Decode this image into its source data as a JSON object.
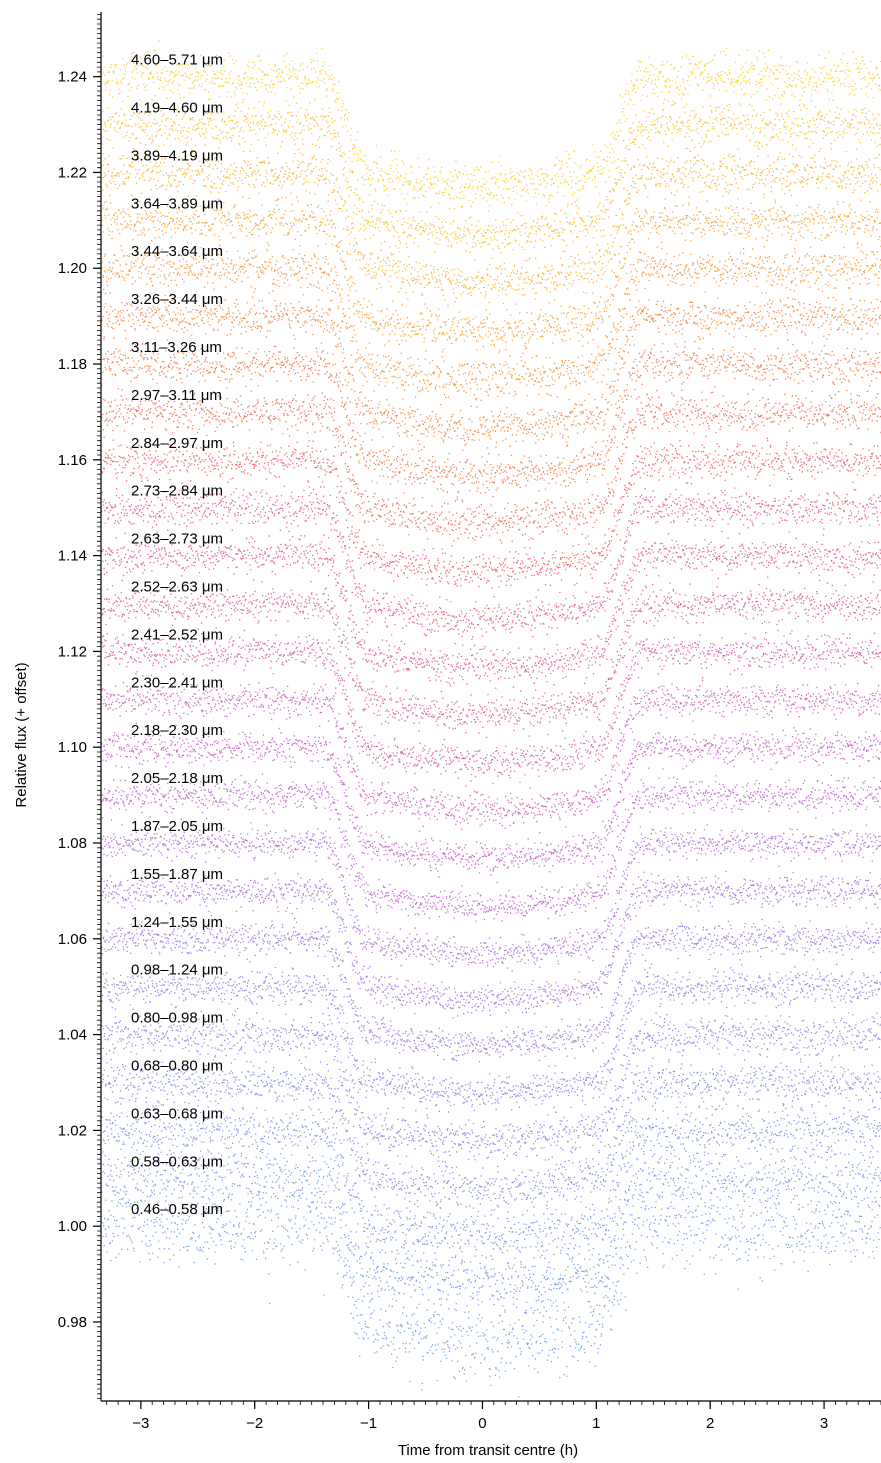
{
  "chart_data": {
    "type": "scatter",
    "title": "",
    "xlabel": "Time from transit centre (h)",
    "ylabel": "Relative flux (+ offset)",
    "xlim": [
      -3.35,
      3.5
    ],
    "ylim": [
      0.9635,
      1.2535
    ],
    "xticks": [
      -3,
      -2,
      -1,
      0,
      1,
      2,
      3
    ],
    "xtick_labels": [
      "−3",
      "−2",
      "−1",
      "0",
      "1",
      "2",
      "3"
    ],
    "yticks": [
      0.98,
      1.0,
      1.02,
      1.04,
      1.06,
      1.08,
      1.1,
      1.12,
      1.14,
      1.16,
      1.18,
      1.2,
      1.22,
      1.24
    ],
    "ytick_labels": [
      "0.98",
      "1.00",
      "1.02",
      "1.04",
      "1.06",
      "1.08",
      "1.10",
      "1.12",
      "1.14",
      "1.16",
      "1.18",
      "1.20",
      "1.22",
      "1.24"
    ],
    "grid": false,
    "legend": "none",
    "transit": {
      "t14_hours": [
        -1.4,
        1.4
      ],
      "t23_hours": [
        -1.0,
        1.0
      ]
    },
    "series": [
      {
        "name": "0.46–0.58 μm",
        "baseline": 1.0,
        "depth": 0.0235,
        "color": "#6f9ce8",
        "scatter": 0.004
      },
      {
        "name": "0.58–0.63 μm",
        "baseline": 1.01,
        "depth": 0.022,
        "color": "#7596e6",
        "scatter": 0.003
      },
      {
        "name": "0.63–0.68 μm",
        "baseline": 1.02,
        "depth": 0.022,
        "color": "#7b90e5",
        "scatter": 0.0025
      },
      {
        "name": "0.68–0.80 μm",
        "baseline": 1.03,
        "depth": 0.022,
        "color": "#828ae4",
        "scatter": 0.0022
      },
      {
        "name": "0.80–0.98 μm",
        "baseline": 1.04,
        "depth": 0.022,
        "color": "#8a84e2",
        "scatter": 0.002
      },
      {
        "name": "0.98–1.24 μm",
        "baseline": 1.05,
        "depth": 0.022,
        "color": "#927ee0",
        "scatter": 0.0018
      },
      {
        "name": "1.24–1.55 μm",
        "baseline": 1.06,
        "depth": 0.022,
        "color": "#9d77de",
        "scatter": 0.0015
      },
      {
        "name": "1.55–1.87 μm",
        "baseline": 1.07,
        "depth": 0.0225,
        "color": "#a870dc",
        "scatter": 0.0015
      },
      {
        "name": "1.87–2.05 μm",
        "baseline": 1.08,
        "depth": 0.023,
        "color": "#b26bd8",
        "scatter": 0.0015
      },
      {
        "name": "2.05–2.18 μm",
        "baseline": 1.09,
        "depth": 0.023,
        "color": "#bb66cf",
        "scatter": 0.0016
      },
      {
        "name": "2.18–2.30 μm",
        "baseline": 1.1,
        "depth": 0.023,
        "color": "#c462c4",
        "scatter": 0.0016
      },
      {
        "name": "2.30–2.41 μm",
        "baseline": 1.11,
        "depth": 0.023,
        "color": "#cc5fb6",
        "scatter": 0.0017
      },
      {
        "name": "2.41–2.52 μm",
        "baseline": 1.12,
        "depth": 0.023,
        "color": "#d35ca7",
        "scatter": 0.0017
      },
      {
        "name": "2.52–2.63 μm",
        "baseline": 1.13,
        "depth": 0.023,
        "color": "#da5b98",
        "scatter": 0.0017
      },
      {
        "name": "2.63–2.73 μm",
        "baseline": 1.14,
        "depth": 0.023,
        "color": "#e05b88",
        "scatter": 0.0018
      },
      {
        "name": "2.73–2.84 μm",
        "baseline": 1.15,
        "depth": 0.023,
        "color": "#e65d78",
        "scatter": 0.0018
      },
      {
        "name": "2.84–2.97 μm",
        "baseline": 1.16,
        "depth": 0.023,
        "color": "#ec6168",
        "scatter": 0.0018
      },
      {
        "name": "2.97–3.11 μm",
        "baseline": 1.17,
        "depth": 0.023,
        "color": "#f06a58",
        "scatter": 0.0019
      },
      {
        "name": "3.11–3.26 μm",
        "baseline": 1.18,
        "depth": 0.023,
        "color": "#f3764a",
        "scatter": 0.0019
      },
      {
        "name": "3.26–3.44 μm",
        "baseline": 1.19,
        "depth": 0.023,
        "color": "#f6843d",
        "scatter": 0.0019
      },
      {
        "name": "3.44–3.64 μm",
        "baseline": 1.2,
        "depth": 0.023,
        "color": "#f89232",
        "scatter": 0.002
      },
      {
        "name": "3.64–3.89 μm",
        "baseline": 1.21,
        "depth": 0.023,
        "color": "#faa12a",
        "scatter": 0.002
      },
      {
        "name": "3.89–4.19 μm",
        "baseline": 1.22,
        "depth": 0.0225,
        "color": "#fbb025",
        "scatter": 0.0021
      },
      {
        "name": "4.19–4.60 μm",
        "baseline": 1.23,
        "depth": 0.0225,
        "color": "#fcbf20",
        "scatter": 0.0022
      },
      {
        "name": "4.60–5.71 μm",
        "baseline": 1.24,
        "depth": 0.0225,
        "color": "#fdcd1c",
        "scatter": 0.0024
      }
    ]
  }
}
